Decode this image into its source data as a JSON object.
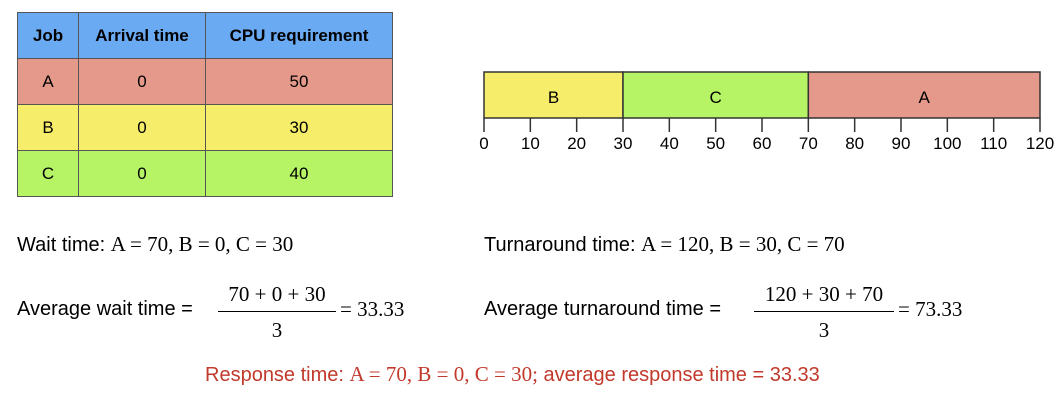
{
  "table": {
    "header": [
      "Job",
      "Arrival time",
      "CPU requirement"
    ],
    "rows": [
      [
        "A",
        0,
        50
      ],
      [
        "B",
        0,
        30
      ],
      [
        "C",
        0,
        40
      ]
    ],
    "header_color": "#6aaaf2",
    "row_colors": [
      "#e4998a",
      "#f6ee6b",
      "#b6f466"
    ]
  },
  "gantt": {
    "segments": [
      {
        "label": "B",
        "start": 0,
        "end": 30,
        "color": "#f6ee6b"
      },
      {
        "label": "C",
        "start": 30,
        "end": 70,
        "color": "#b6f466"
      },
      {
        "label": "A",
        "start": 70,
        "end": 120,
        "color": "#e4998a"
      }
    ],
    "xlim": [
      0,
      120
    ],
    "ticks": [
      0,
      10,
      20,
      30,
      40,
      50,
      60,
      70,
      80,
      90,
      100,
      110,
      120
    ]
  },
  "wait": {
    "label": "Wait time:",
    "math": "A = 70, B = 0, C = 30"
  },
  "avg_wait": {
    "label": "Average wait time =",
    "numerator": "70 + 0 + 30",
    "denominator": "3",
    "result": "= 33.33"
  },
  "turnaround": {
    "label": "Turnaround time:",
    "math": "A = 120, B = 30, C = 70"
  },
  "avg_turnaround": {
    "label": "Average turnaround time =",
    "numerator": "120 + 30 + 70",
    "denominator": "3",
    "result": "= 73.33"
  },
  "response": {
    "label": "Response time:",
    "math": "A = 70, B = 0, C = 30;",
    "summary": "average response time = 33.33"
  }
}
